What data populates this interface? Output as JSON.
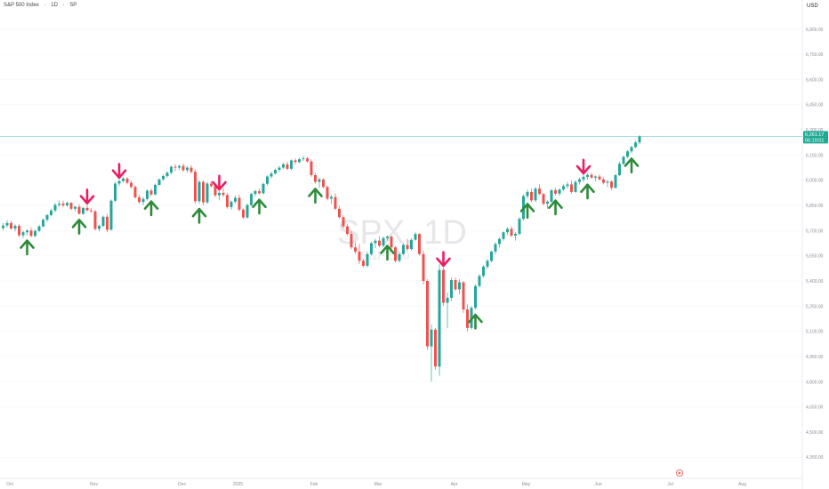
{
  "legend": {
    "instrument": "S&P 500 Index",
    "interval": "1D",
    "exchange": "SP"
  },
  "watermark": {
    "symbol": "SPX, 1D",
    "name": "S&P 500"
  },
  "price_axis": {
    "currency_button": "USD",
    "last_price": "6,261.17",
    "countdown": "06:19:01"
  },
  "colors": {
    "up": "#f0f0f0",
    "down": "#ef5350",
    "up_body": "#26a69a",
    "buy_arrow": "#2e8b3a",
    "sell_arrow": "#e91e63",
    "price_line": "#8fd3d3",
    "price_tag": "#22ab94"
  },
  "icons": {
    "buy_marker": "up-arrow-icon",
    "sell_marker": "down-arrow-icon",
    "goto_realtime": "replay-icon"
  },
  "chart_data": {
    "type": "candlestick",
    "title": "",
    "x_tick_labels": [
      "Oct",
      "Nov",
      "Dec",
      "2025",
      "Feb",
      "Mar",
      "Apr",
      "May",
      "Jun",
      "Jul",
      "Aug"
    ],
    "y_tick_labels": [
      "6,900.00",
      "6,750.00",
      "6,600.00",
      "6,450.00",
      "6,300.00",
      "6,150.00",
      "6,000.00",
      "5,850.00",
      "5,700.00",
      "5,550.00",
      "5,400.00",
      "5,250.00",
      "5,100.00",
      "4,950.00",
      "4,800.00",
      "4,650.00",
      "4,500.00",
      "4,350.00"
    ],
    "ylim": [
      4330,
      7010
    ],
    "last_value": 6261.17,
    "candles": [
      [
        5715,
        5745,
        5700,
        5730
      ],
      [
        5730,
        5762,
        5718,
        5745
      ],
      [
        5745,
        5760,
        5705,
        5712
      ],
      [
        5712,
        5738,
        5695,
        5728
      ],
      [
        5728,
        5740,
        5660,
        5672
      ],
      [
        5672,
        5700,
        5655,
        5690
      ],
      [
        5690,
        5708,
        5672,
        5700
      ],
      [
        5700,
        5718,
        5660,
        5668
      ],
      [
        5668,
        5705,
        5660,
        5698
      ],
      [
        5698,
        5735,
        5690,
        5725
      ],
      [
        5725,
        5772,
        5718,
        5765
      ],
      [
        5765,
        5800,
        5752,
        5792
      ],
      [
        5792,
        5830,
        5785,
        5820
      ],
      [
        5820,
        5865,
        5810,
        5853
      ],
      [
        5853,
        5880,
        5840,
        5860
      ],
      [
        5860,
        5878,
        5838,
        5850
      ],
      [
        5850,
        5872,
        5842,
        5865
      ],
      [
        5865,
        5870,
        5820,
        5830
      ],
      [
        5830,
        5848,
        5815,
        5842
      ],
      [
        5842,
        5858,
        5795,
        5800
      ],
      [
        5800,
        5840,
        5792,
        5835
      ],
      [
        5835,
        5852,
        5815,
        5820
      ],
      [
        5820,
        5835,
        5805,
        5815
      ],
      [
        5815,
        5822,
        5700,
        5710
      ],
      [
        5710,
        5735,
        5695,
        5728
      ],
      [
        5728,
        5790,
        5720,
        5782
      ],
      [
        5782,
        5800,
        5690,
        5705
      ],
      [
        5705,
        5885,
        5700,
        5878
      ],
      [
        5878,
        5990,
        5870,
        5980
      ],
      [
        5980,
        6005,
        5965,
        5995
      ],
      [
        5995,
        6020,
        5985,
        6010
      ],
      [
        6010,
        6018,
        5975,
        5985
      ],
      [
        5985,
        5998,
        5950,
        5960
      ],
      [
        5960,
        5970,
        5890,
        5898
      ],
      [
        5898,
        5915,
        5860,
        5870
      ],
      [
        5870,
        5900,
        5850,
        5888
      ],
      [
        5888,
        5945,
        5880,
        5938
      ],
      [
        5938,
        5950,
        5905,
        5915
      ],
      [
        5915,
        5980,
        5910,
        5972
      ],
      [
        5972,
        6010,
        5965,
        6005
      ],
      [
        6005,
        6035,
        5995,
        6025
      ],
      [
        6025,
        6052,
        6015,
        6045
      ],
      [
        6045,
        6088,
        6035,
        6080
      ],
      [
        6080,
        6095,
        6055,
        6075
      ],
      [
        6075,
        6092,
        6060,
        6085
      ],
      [
        6085,
        6100,
        6050,
        6060
      ],
      [
        6060,
        6083,
        6045,
        6075
      ],
      [
        6075,
        6090,
        6040,
        6050
      ],
      [
        6050,
        6065,
        5860,
        5875
      ],
      [
        5875,
        6000,
        5860,
        5990
      ],
      [
        5990,
        6000,
        5850,
        5868
      ],
      [
        5868,
        5990,
        5860,
        5980
      ],
      [
        5980,
        5995,
        5955,
        5965
      ],
      [
        5965,
        5980,
        5900,
        5910
      ],
      [
        5910,
        5935,
        5880,
        5925
      ],
      [
        5925,
        5950,
        5900,
        5912
      ],
      [
        5912,
        5925,
        5830,
        5840
      ],
      [
        5840,
        5880,
        5825,
        5872
      ],
      [
        5872,
        5910,
        5860,
        5895
      ],
      [
        5895,
        5915,
        5815,
        5825
      ],
      [
        5825,
        5832,
        5770,
        5778
      ],
      [
        5778,
        5860,
        5770,
        5852
      ],
      [
        5852,
        5925,
        5845,
        5918
      ],
      [
        5918,
        5945,
        5905,
        5935
      ],
      [
        5935,
        5950,
        5915,
        5922
      ],
      [
        5922,
        5985,
        5915,
        5978
      ],
      [
        5978,
        6030,
        5970,
        6022
      ],
      [
        6022,
        6050,
        6010,
        6040
      ],
      [
        6040,
        6070,
        6032,
        6062
      ],
      [
        6062,
        6085,
        6050,
        6075
      ],
      [
        6075,
        6105,
        6065,
        6095
      ],
      [
        6095,
        6110,
        6060,
        6068
      ],
      [
        6068,
        6125,
        6060,
        6118
      ],
      [
        6118,
        6130,
        6095,
        6108
      ],
      [
        6108,
        6135,
        6100,
        6125
      ],
      [
        6125,
        6145,
        6115,
        6130
      ],
      [
        6130,
        6140,
        6105,
        6112
      ],
      [
        6112,
        6125,
        6020,
        6030
      ],
      [
        6030,
        6045,
        5980,
        5990
      ],
      [
        5990,
        6015,
        5955,
        6005
      ],
      [
        6005,
        6010,
        5950,
        5960
      ],
      [
        5960,
        5970,
        5880,
        5890
      ],
      [
        5890,
        5912,
        5860,
        5900
      ],
      [
        5900,
        5920,
        5820,
        5830
      ],
      [
        5830,
        5848,
        5770,
        5780
      ],
      [
        5780,
        5790,
        5715,
        5725
      ],
      [
        5725,
        5740,
        5670,
        5680
      ],
      [
        5680,
        5700,
        5590,
        5600
      ],
      [
        5600,
        5628,
        5560,
        5575
      ],
      [
        5575,
        5620,
        5500,
        5520
      ],
      [
        5520,
        5530,
        5480,
        5490
      ],
      [
        5490,
        5570,
        5480,
        5560
      ],
      [
        5560,
        5635,
        5552,
        5625
      ],
      [
        5625,
        5650,
        5595,
        5640
      ],
      [
        5640,
        5665,
        5600,
        5610
      ],
      [
        5610,
        5665,
        5600,
        5655
      ],
      [
        5655,
        5672,
        5640,
        5664
      ],
      [
        5664,
        5670,
        5590,
        5600
      ],
      [
        5600,
        5610,
        5510,
        5520
      ],
      [
        5520,
        5570,
        5510,
        5560
      ],
      [
        5560,
        5625,
        5555,
        5615
      ],
      [
        5615,
        5650,
        5580,
        5590
      ],
      [
        5590,
        5655,
        5580,
        5645
      ],
      [
        5645,
        5690,
        5640,
        5680
      ],
      [
        5680,
        5685,
        5550,
        5560
      ],
      [
        5560,
        5580,
        5380,
        5400
      ],
      [
        5400,
        5410,
        4990,
        5010
      ],
      [
        5010,
        5140,
        4800,
        5110
      ],
      [
        5110,
        5120,
        4870,
        4890
      ],
      [
        4890,
        5500,
        4835,
        5465
      ],
      [
        5465,
        5480,
        5250,
        5270
      ],
      [
        5270,
        5330,
        5120,
        5300
      ],
      [
        5300,
        5420,
        5280,
        5405
      ],
      [
        5405,
        5420,
        5340,
        5350
      ],
      [
        5350,
        5410,
        5320,
        5392
      ],
      [
        5392,
        5400,
        5210,
        5230
      ],
      [
        5230,
        5260,
        5100,
        5120
      ],
      [
        5120,
        5250,
        5110,
        5240
      ],
      [
        5240,
        5380,
        5230,
        5370
      ],
      [
        5370,
        5440,
        5360,
        5430
      ],
      [
        5430,
        5495,
        5420,
        5485
      ],
      [
        5485,
        5530,
        5470,
        5520
      ],
      [
        5520,
        5580,
        5510,
        5575
      ],
      [
        5575,
        5630,
        5560,
        5620
      ],
      [
        5620,
        5660,
        5600,
        5650
      ],
      [
        5650,
        5695,
        5640,
        5690
      ],
      [
        5690,
        5720,
        5675,
        5710
      ],
      [
        5710,
        5725,
        5660,
        5670
      ],
      [
        5670,
        5690,
        5640,
        5680
      ],
      [
        5680,
        5780,
        5672,
        5770
      ],
      [
        5770,
        5915,
        5760,
        5905
      ],
      [
        5905,
        5945,
        5890,
        5930
      ],
      [
        5930,
        5950,
        5870,
        5880
      ],
      [
        5880,
        5960,
        5870,
        5950
      ],
      [
        5950,
        5975,
        5910,
        5918
      ],
      [
        5918,
        5925,
        5850,
        5860
      ],
      [
        5860,
        5880,
        5830,
        5872
      ],
      [
        5872,
        5948,
        5865,
        5940
      ],
      [
        5940,
        5955,
        5910,
        5920
      ],
      [
        5920,
        5950,
        5905,
        5945
      ],
      [
        5945,
        5975,
        5935,
        5965
      ],
      [
        5965,
        5990,
        5950,
        5975
      ],
      [
        5975,
        5998,
        5920,
        5930
      ],
      [
        5930,
        6000,
        5925,
        5990
      ],
      [
        5990,
        6015,
        5975,
        6005
      ],
      [
        6005,
        6030,
        5990,
        6020
      ],
      [
        6020,
        6040,
        6005,
        6032
      ],
      [
        6032,
        6045,
        6010,
        6015
      ],
      [
        6015,
        6028,
        5995,
        6022
      ],
      [
        6022,
        6035,
        5998,
        6005
      ],
      [
        6005,
        6018,
        5975,
        5985
      ],
      [
        5985,
        6000,
        5960,
        5992
      ],
      [
        5992,
        6000,
        5940,
        5955
      ],
      [
        5955,
        6040,
        5950,
        6030
      ],
      [
        6030,
        6110,
        6025,
        6098
      ],
      [
        6098,
        6145,
        6090,
        6140
      ],
      [
        6140,
        6180,
        6130,
        6172
      ],
      [
        6172,
        6205,
        6160,
        6198
      ],
      [
        6198,
        6235,
        6190,
        6225
      ],
      [
        6225,
        6268,
        6215,
        6261
      ]
    ],
    "buy_signals": [
      6,
      19,
      37,
      49,
      64,
      78,
      96,
      118,
      131,
      138,
      146,
      157,
      165,
      169
    ],
    "sell_signals": [
      21,
      29,
      54,
      110,
      145
    ]
  }
}
